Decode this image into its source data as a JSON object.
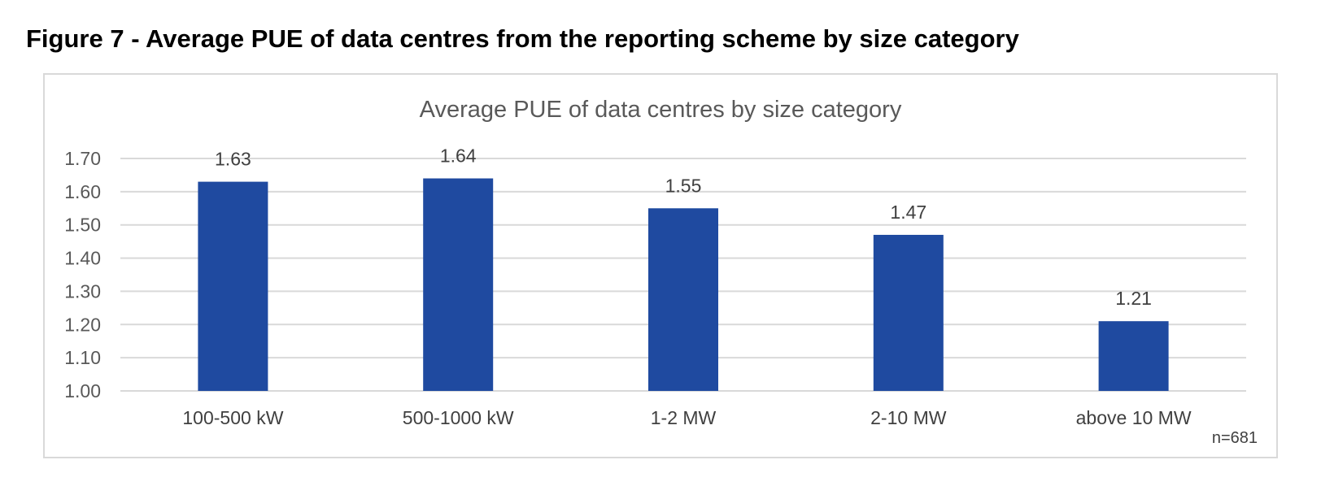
{
  "figure": {
    "caption": "Figure 7 - Average PUE of data centres from the reporting scheme by size category"
  },
  "chart_data": {
    "type": "bar",
    "title": "Average PUE of data centres by size category",
    "categories": [
      "100-500 kW",
      "500-1000 kW",
      "1-2 MW",
      "2-10 MW",
      "above 10 MW"
    ],
    "values": [
      1.63,
      1.64,
      1.55,
      1.47,
      1.21
    ],
    "data_labels": [
      "1.63",
      "1.64",
      "1.55",
      "1.47",
      "1.21"
    ],
    "yticks": [
      "1.00",
      "1.10",
      "1.20",
      "1.30",
      "1.40",
      "1.50",
      "1.60",
      "1.70"
    ],
    "ylim": [
      1.0,
      1.7
    ],
    "xlabel": "",
    "ylabel": "",
    "grid": true,
    "legend": "none",
    "bar_color": "#1f4aa0",
    "grid_color": "#d9d9d9",
    "annotation": "n=681"
  }
}
